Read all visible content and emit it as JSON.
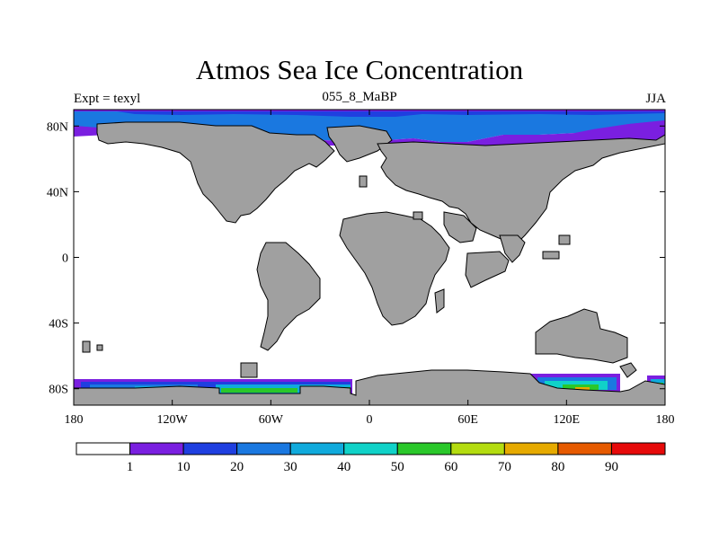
{
  "title": "Atmos Sea Ice Concentration",
  "subtitle_left": "Expt = texyl",
  "subtitle_center": "055_8_MaBP",
  "subtitle_right": "JJA",
  "map": {
    "projection": "cylindrical-equidistant",
    "lon_range": [
      -180,
      180
    ],
    "lat_range": [
      -90,
      90
    ],
    "land_color": "#a0a0a0",
    "ocean_color": "#ffffff",
    "y_ticks": [
      {
        "lat": 80,
        "label": "80N"
      },
      {
        "lat": 40,
        "label": "40N"
      },
      {
        "lat": 0,
        "label": "0"
      },
      {
        "lat": -40,
        "label": "40S"
      },
      {
        "lat": -80,
        "label": "80S"
      }
    ],
    "x_ticks": [
      {
        "lon": -180,
        "label": "180"
      },
      {
        "lon": -120,
        "label": "120W"
      },
      {
        "lon": -60,
        "label": "60W"
      },
      {
        "lon": 0,
        "label": "0"
      },
      {
        "lon": 60,
        "label": "60E"
      },
      {
        "lon": 120,
        "label": "120E"
      },
      {
        "lon": 180,
        "label": "180"
      }
    ]
  },
  "colorbar": {
    "colors": [
      "#ffffff",
      "#7a1fe0",
      "#1f3fe0",
      "#1a78e0",
      "#10aadc",
      "#10d2c8",
      "#2ac82a",
      "#b4dc10",
      "#e6aa00",
      "#e65a00",
      "#e60a0a"
    ],
    "labels": [
      "1",
      "10",
      "20",
      "30",
      "40",
      "50",
      "60",
      "70",
      "80",
      "90"
    ]
  }
}
